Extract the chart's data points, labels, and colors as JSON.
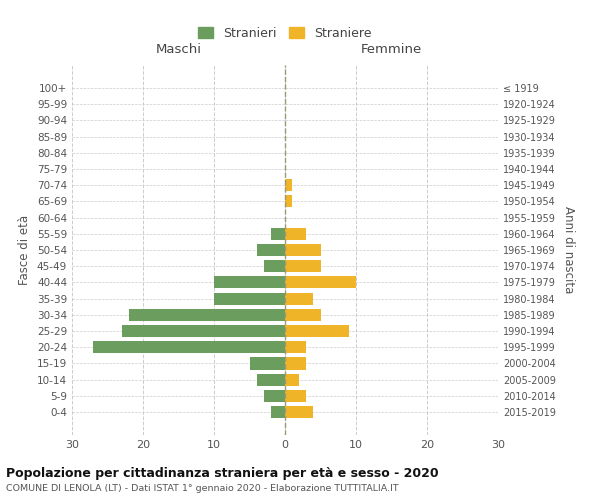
{
  "age_groups": [
    "100+",
    "95-99",
    "90-94",
    "85-89",
    "80-84",
    "75-79",
    "70-74",
    "65-69",
    "60-64",
    "55-59",
    "50-54",
    "45-49",
    "40-44",
    "35-39",
    "30-34",
    "25-29",
    "20-24",
    "15-19",
    "10-14",
    "5-9",
    "0-4"
  ],
  "birth_years": [
    "≤ 1919",
    "1920-1924",
    "1925-1929",
    "1930-1934",
    "1935-1939",
    "1940-1944",
    "1945-1949",
    "1950-1954",
    "1955-1959",
    "1960-1964",
    "1965-1969",
    "1970-1974",
    "1975-1979",
    "1980-1984",
    "1985-1989",
    "1990-1994",
    "1995-1999",
    "2000-2004",
    "2005-2009",
    "2010-2014",
    "2015-2019"
  ],
  "males": [
    0,
    0,
    0,
    0,
    0,
    0,
    0,
    0,
    0,
    2,
    4,
    3,
    10,
    10,
    22,
    23,
    27,
    5,
    4,
    3,
    2
  ],
  "females": [
    0,
    0,
    0,
    0,
    0,
    0,
    1,
    1,
    0,
    3,
    5,
    5,
    10,
    4,
    5,
    9,
    3,
    3,
    2,
    3,
    4
  ],
  "male_color": "#6b9e5e",
  "female_color": "#f0b429",
  "title": "Popolazione per cittadinanza straniera per età e sesso - 2020",
  "subtitle": "COMUNE DI LENOLA (LT) - Dati ISTAT 1° gennaio 2020 - Elaborazione TUTTITALIA.IT",
  "ylabel_left": "Fasce di età",
  "ylabel_right": "Anni di nascita",
  "xlabel_left": "Maschi",
  "xlabel_right": "Femmine",
  "legend_male": "Stranieri",
  "legend_female": "Straniere",
  "xlim": 30,
  "background_color": "#ffffff",
  "grid_color": "#cccccc"
}
